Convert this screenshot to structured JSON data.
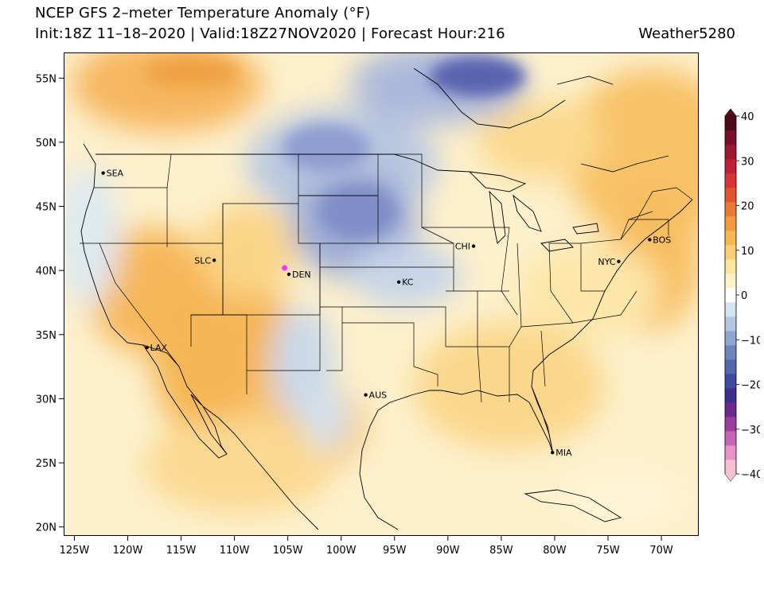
{
  "header": {
    "title": "NCEP GFS 2–meter Temperature Anomaly (°F)",
    "subtitle": "Init:18Z 11–18–2020 | Valid:18Z27NOV2020 | Forecast Hour:216",
    "brand": "Weather5280"
  },
  "map": {
    "lat_labels": [
      "55N",
      "50N",
      "45N",
      "40N",
      "35N",
      "30N",
      "25N",
      "20N"
    ],
    "lat_values": [
      55,
      50,
      45,
      40,
      35,
      30,
      25,
      20
    ],
    "lon_labels": [
      "125W",
      "120W",
      "115W",
      "110W",
      "105W",
      "100W",
      "95W",
      "90W",
      "85W",
      "80W",
      "75W",
      "70W"
    ],
    "lon_values": [
      -125,
      -120,
      -115,
      -110,
      -105,
      -100,
      -95,
      -90,
      -85,
      -80,
      -75,
      -70
    ],
    "extent": {
      "lon_min": -126,
      "lon_max": -66.5,
      "lat_min": 19.3,
      "lat_max": 57
    },
    "cities": [
      {
        "name": "SEA",
        "lon": -122.3,
        "lat": 47.6
      },
      {
        "name": "SLC",
        "lon": -111.9,
        "lat": 40.8
      },
      {
        "name": "DEN",
        "lon": -104.9,
        "lat": 39.7
      },
      {
        "name": "KC",
        "lon": -94.6,
        "lat": 39.1
      },
      {
        "name": "CHI",
        "lon": -87.6,
        "lat": 41.9
      },
      {
        "name": "NYC",
        "lon": -74.0,
        "lat": 40.7
      },
      {
        "name": "BOS",
        "lon": -71.1,
        "lat": 42.4
      },
      {
        "name": "LAX",
        "lon": -118.2,
        "lat": 34.0
      },
      {
        "name": "AUS",
        "lon": -97.7,
        "lat": 30.3
      },
      {
        "name": "MIA",
        "lon": -80.2,
        "lat": 25.8
      }
    ],
    "marker": {
      "lon": -105.3,
      "lat": 40.2,
      "color": "#ff33ff"
    }
  },
  "colorbar": {
    "labels": [
      "40",
      "30",
      "20",
      "10",
      "0",
      "−10",
      "−20",
      "−30",
      "−40"
    ],
    "values": [
      40,
      30,
      20,
      10,
      0,
      -10,
      -20,
      -30,
      -40
    ],
    "colors": [
      "#f6c0d4",
      "#e793c8",
      "#c963b6",
      "#9b3d9d",
      "#6a2a8c",
      "#3f2e8e",
      "#3c4b9f",
      "#5068ae",
      "#6c86bd",
      "#8fa6cd",
      "#b3c7de",
      "#d5e4ef",
      "#ffffff",
      "#fdf3c8",
      "#fde5a0",
      "#fbd073",
      "#f8b651",
      "#f39a3f",
      "#ea7a36",
      "#e0552f",
      "#d73535",
      "#bf2036",
      "#9c1833",
      "#7a0f28",
      "#4f0a18"
    ]
  }
}
